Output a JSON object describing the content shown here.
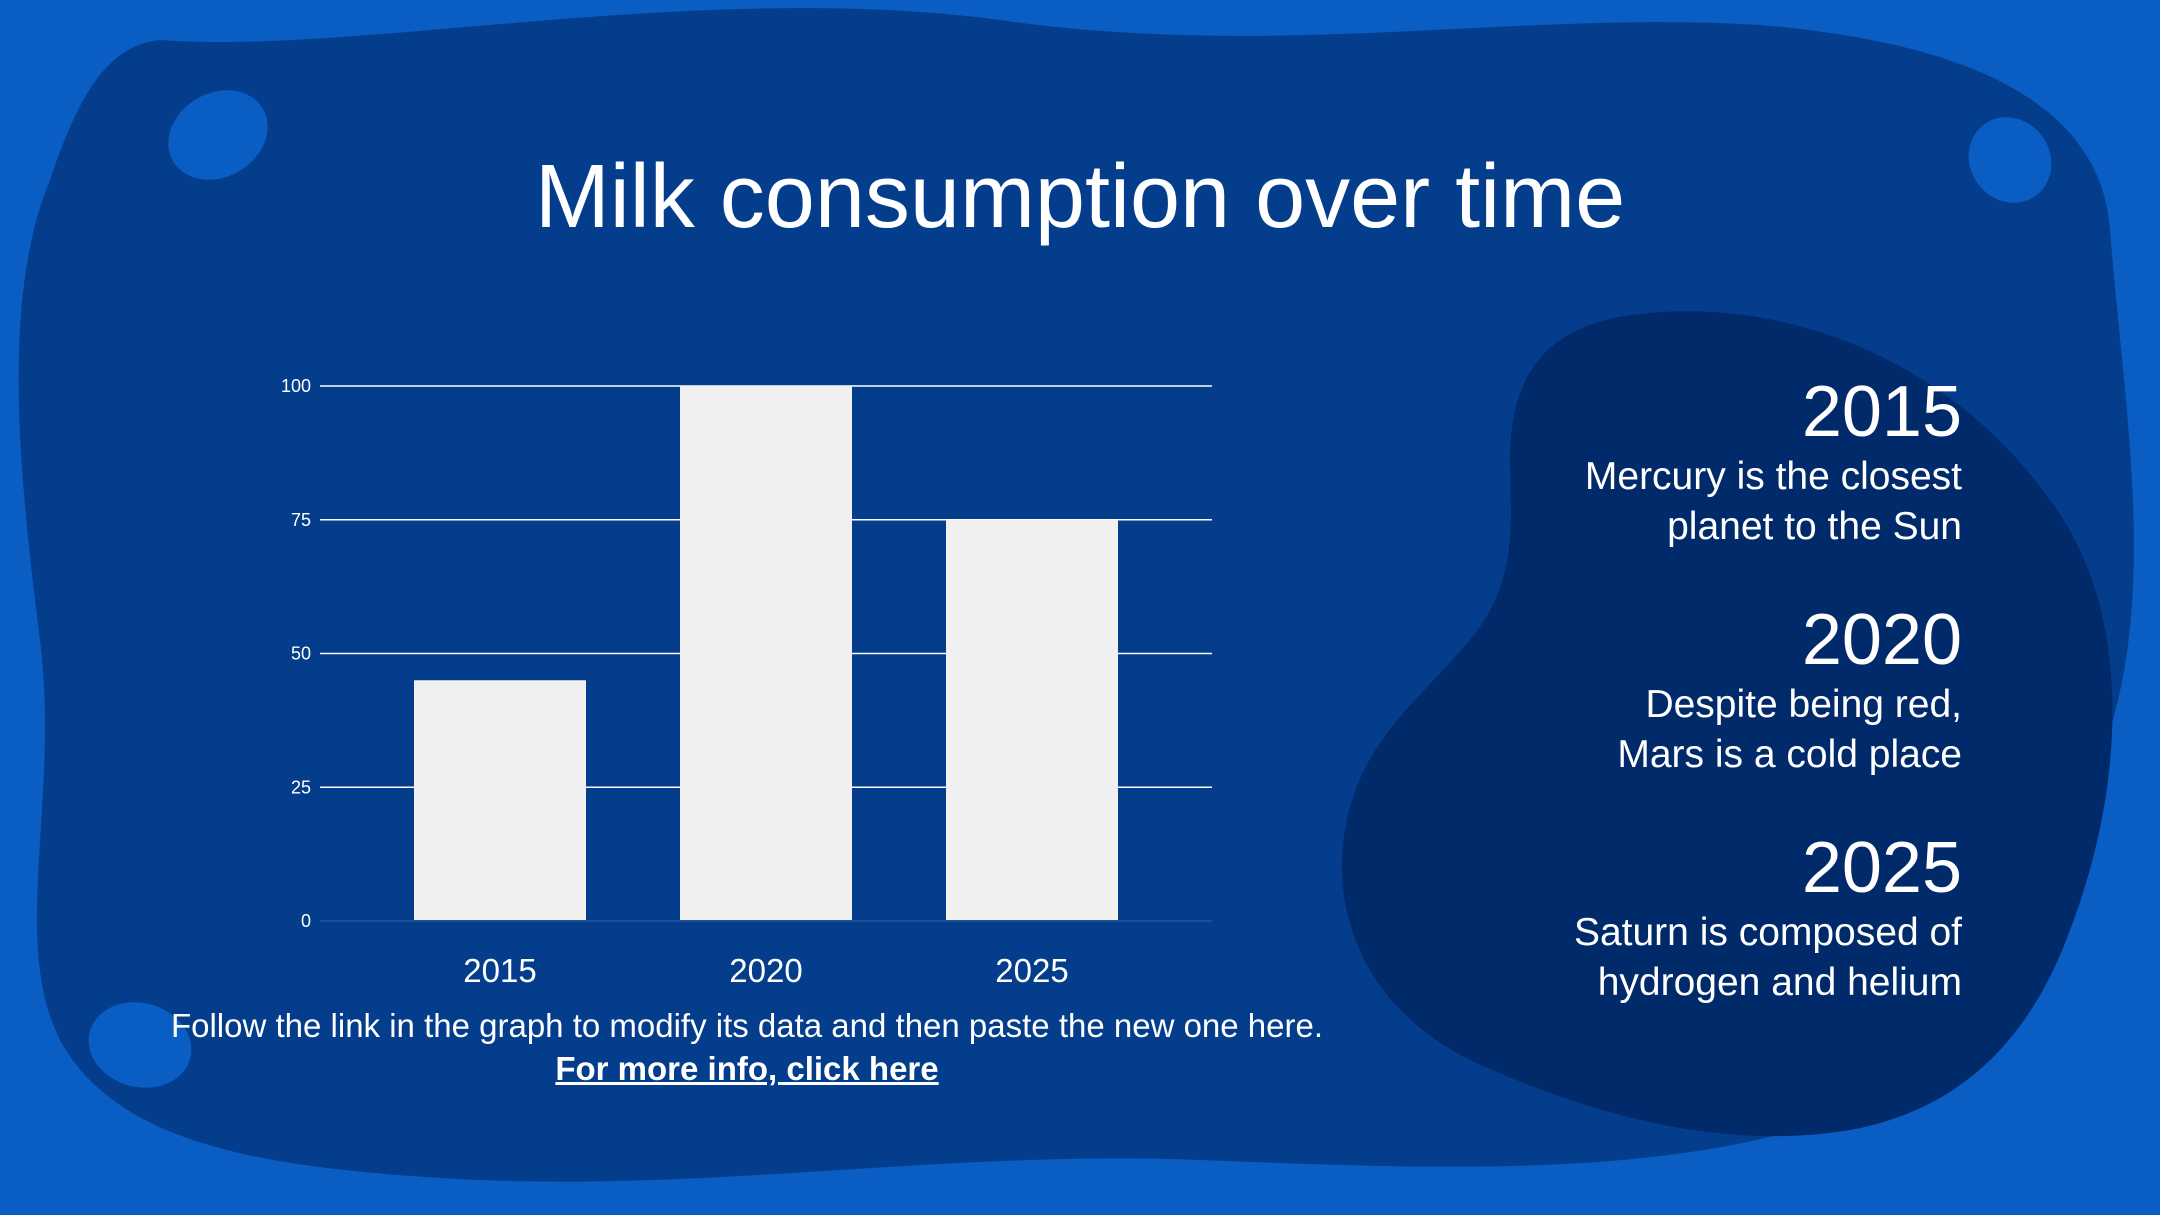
{
  "slide": {
    "title": "Milk consumption over time",
    "caption_text": "Follow the link in the graph to modify its data and then paste the new one here.",
    "caption_link": "For more info, click here"
  },
  "timeline": [
    {
      "year": "2015",
      "desc": [
        "Mercury is the closest",
        "planet to the Sun"
      ]
    },
    {
      "year": "2020",
      "desc": [
        "Despite being red,",
        "Mars is a cold place"
      ]
    },
    {
      "year": "2025",
      "desc": [
        "Saturn is composed of",
        "hydrogen and helium"
      ]
    }
  ],
  "colors": {
    "background_light": "#0a5dc2",
    "background_mid": "#043d8c",
    "blob_dark": "#012a6b",
    "bar": "#f0f0f0",
    "gridline": "#ffffff",
    "text": "#ffffff"
  },
  "chart_data": {
    "type": "bar",
    "categories": [
      "2015",
      "2020",
      "2025"
    ],
    "values": [
      45,
      100,
      75
    ],
    "yticks": [
      0,
      25,
      50,
      75,
      100
    ],
    "ylim": [
      0,
      100
    ],
    "grid": true
  }
}
